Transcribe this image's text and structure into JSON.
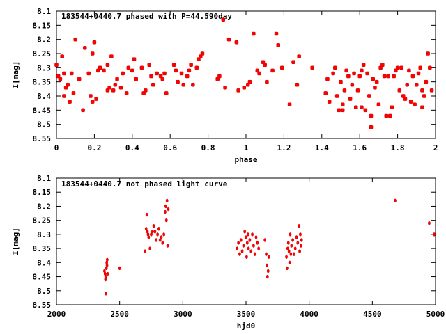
{
  "chart_data": [
    {
      "type": "scatter",
      "title": "183544+0440.7 phased with P=44.590day",
      "xlabel": "phase",
      "ylabel": "I[mag]",
      "xlim": [
        0,
        2
      ],
      "ylim": [
        8.1,
        8.55
      ],
      "y_inverted": true,
      "grid": false,
      "xticks": [
        0,
        0.2,
        0.4,
        0.6,
        0.8,
        1,
        1.2,
        1.4,
        1.6,
        1.8,
        2
      ],
      "xtick_labels": [
        "0",
        "0.2",
        "0.4",
        "0.6",
        "0.8",
        "1",
        "1.2",
        "1.4",
        "1.6",
        "1.8",
        "2"
      ],
      "yticks": [
        8.1,
        8.15,
        8.2,
        8.25,
        8.3,
        8.35,
        8.4,
        8.45,
        8.5,
        8.55
      ],
      "ytick_labels": [
        "8.1",
        "8.15",
        "8.2",
        "8.25",
        "8.3",
        "8.35",
        "8.4",
        "8.45",
        "8.5",
        "8.55"
      ],
      "color": "#ff0000",
      "points": [
        [
          0.0,
          8.29
        ],
        [
          0.01,
          8.33
        ],
        [
          0.02,
          8.34
        ],
        [
          0.03,
          8.26
        ],
        [
          0.04,
          8.32
        ],
        [
          0.04,
          8.4
        ],
        [
          0.05,
          8.37
        ],
        [
          0.06,
          8.36
        ],
        [
          0.07,
          8.42
        ],
        [
          0.08,
          8.32
        ],
        [
          0.09,
          8.39
        ],
        [
          0.1,
          8.2
        ],
        [
          0.12,
          8.34
        ],
        [
          0.14,
          8.45
        ],
        [
          0.15,
          8.23
        ],
        [
          0.17,
          8.32
        ],
        [
          0.18,
          8.4
        ],
        [
          0.19,
          8.42
        ],
        [
          0.19,
          8.25
        ],
        [
          0.2,
          8.21
        ],
        [
          0.21,
          8.41
        ],
        [
          0.22,
          8.31
        ],
        [
          0.23,
          8.3
        ],
        [
          0.25,
          8.31
        ],
        [
          0.27,
          8.29
        ],
        [
          0.27,
          8.38
        ],
        [
          0.28,
          8.37
        ],
        [
          0.29,
          8.26
        ],
        [
          0.3,
          8.38
        ],
        [
          0.31,
          8.36
        ],
        [
          0.32,
          8.34
        ],
        [
          0.34,
          8.37
        ],
        [
          0.35,
          8.32
        ],
        [
          0.37,
          8.39
        ],
        [
          0.38,
          8.3
        ],
        [
          0.4,
          8.31
        ],
        [
          0.41,
          8.27
        ],
        [
          0.42,
          8.34
        ],
        [
          0.45,
          8.3
        ],
        [
          0.46,
          8.39
        ],
        [
          0.47,
          8.38
        ],
        [
          0.49,
          8.29
        ],
        [
          0.5,
          8.33
        ],
        [
          0.51,
          8.36
        ],
        [
          0.53,
          8.32
        ],
        [
          0.55,
          8.33
        ],
        [
          0.56,
          8.34
        ],
        [
          0.57,
          8.32
        ],
        [
          0.58,
          8.39
        ],
        [
          0.62,
          8.29
        ],
        [
          0.63,
          8.31
        ],
        [
          0.64,
          8.35
        ],
        [
          0.66,
          8.32
        ],
        [
          0.67,
          8.36
        ],
        [
          0.69,
          8.33
        ],
        [
          0.7,
          8.31
        ],
        [
          0.71,
          8.29
        ],
        [
          0.72,
          8.36
        ],
        [
          0.74,
          8.3
        ],
        [
          0.75,
          8.27
        ],
        [
          0.76,
          8.26
        ],
        [
          0.77,
          8.25
        ],
        [
          0.85,
          8.34
        ],
        [
          0.86,
          8.33
        ],
        [
          0.88,
          8.13
        ],
        [
          0.89,
          8.37
        ],
        [
          0.91,
          8.2
        ],
        [
          0.95,
          8.21
        ],
        [
          0.96,
          8.38
        ],
        [
          0.99,
          8.37
        ],
        [
          1.01,
          8.36
        ],
        [
          1.02,
          8.35
        ],
        [
          1.04,
          8.18
        ],
        [
          1.06,
          8.31
        ],
        [
          1.07,
          8.32
        ],
        [
          1.09,
          8.28
        ],
        [
          1.1,
          8.29
        ],
        [
          1.11,
          8.35
        ],
        [
          1.14,
          8.31
        ],
        [
          1.16,
          8.18
        ],
        [
          1.17,
          8.22
        ],
        [
          1.19,
          8.3
        ],
        [
          1.23,
          8.43
        ],
        [
          1.25,
          8.28
        ],
        [
          1.27,
          8.36
        ],
        [
          1.28,
          8.26
        ],
        [
          1.35,
          8.3
        ],
        [
          1.42,
          8.39
        ],
        [
          1.43,
          8.34
        ],
        [
          1.44,
          8.42
        ],
        [
          1.46,
          8.32
        ],
        [
          1.47,
          8.3
        ],
        [
          1.48,
          8.4
        ],
        [
          1.49,
          8.45
        ],
        [
          1.5,
          8.35
        ],
        [
          1.51,
          8.45
        ],
        [
          1.51,
          8.43
        ],
        [
          1.52,
          8.38
        ],
        [
          1.53,
          8.31
        ],
        [
          1.54,
          8.33
        ],
        [
          1.55,
          8.41
        ],
        [
          1.56,
          8.36
        ],
        [
          1.57,
          8.32
        ],
        [
          1.58,
          8.44
        ],
        [
          1.59,
          8.38
        ],
        [
          1.6,
          8.33
        ],
        [
          1.61,
          8.44
        ],
        [
          1.61,
          8.31
        ],
        [
          1.62,
          8.29
        ],
        [
          1.63,
          8.45
        ],
        [
          1.64,
          8.32
        ],
        [
          1.65,
          8.4
        ],
        [
          1.66,
          8.47
        ],
        [
          1.66,
          8.51
        ],
        [
          1.67,
          8.34
        ],
        [
          1.68,
          8.37
        ],
        [
          1.69,
          8.35
        ],
        [
          1.7,
          8.43
        ],
        [
          1.71,
          8.3
        ],
        [
          1.72,
          8.29
        ],
        [
          1.73,
          8.33
        ],
        [
          1.74,
          8.47
        ],
        [
          1.75,
          8.33
        ],
        [
          1.76,
          8.47
        ],
        [
          1.77,
          8.44
        ],
        [
          1.78,
          8.33
        ],
        [
          1.79,
          8.31
        ],
        [
          1.8,
          8.3
        ],
        [
          1.81,
          8.38
        ],
        [
          1.82,
          8.3
        ],
        [
          1.83,
          8.4
        ],
        [
          1.84,
          8.41
        ],
        [
          1.85,
          8.36
        ],
        [
          1.86,
          8.31
        ],
        [
          1.87,
          8.42
        ],
        [
          1.88,
          8.33
        ],
        [
          1.89,
          8.43
        ],
        [
          1.9,
          8.36
        ],
        [
          1.91,
          8.32
        ],
        [
          1.92,
          8.3
        ],
        [
          1.93,
          8.38
        ],
        [
          1.93,
          8.44
        ],
        [
          1.94,
          8.4
        ],
        [
          1.95,
          8.35
        ],
        [
          1.96,
          8.25
        ],
        [
          1.97,
          8.3
        ],
        [
          1.98,
          8.38
        ]
      ]
    },
    {
      "type": "scatter",
      "title": "183544+0440.7 not phased light curve",
      "xlabel": "hjd0",
      "ylabel": "I[mag]",
      "xlim": [
        2000,
        5000
      ],
      "ylim": [
        8.1,
        8.55
      ],
      "y_inverted": true,
      "grid": false,
      "xticks": [
        2000,
        2500,
        3000,
        3500,
        4000,
        4500,
        5000
      ],
      "xtick_labels": [
        "2000",
        "2500",
        "3000",
        "3500",
        "4000",
        "4500",
        "5000"
      ],
      "yticks": [
        8.1,
        8.15,
        8.2,
        8.25,
        8.3,
        8.35,
        8.4,
        8.45,
        8.5,
        8.55
      ],
      "ytick_labels": [
        "8.1",
        "8.15",
        "8.2",
        "8.25",
        "8.3",
        "8.35",
        "8.4",
        "8.45",
        "8.5",
        "8.55"
      ],
      "color": "#ff0000",
      "points": [
        [
          2380,
          8.43
        ],
        [
          2385,
          8.44
        ],
        [
          2388,
          8.46
        ],
        [
          2390,
          8.45
        ],
        [
          2392,
          8.51
        ],
        [
          2395,
          8.42
        ],
        [
          2398,
          8.4
        ],
        [
          2400,
          8.41
        ],
        [
          2402,
          8.39
        ],
        [
          2405,
          8.44
        ],
        [
          2500,
          8.42
        ],
        [
          2700,
          8.36
        ],
        [
          2710,
          8.28
        ],
        [
          2715,
          8.23
        ],
        [
          2720,
          8.29
        ],
        [
          2725,
          8.3
        ],
        [
          2730,
          8.31
        ],
        [
          2740,
          8.35
        ],
        [
          2750,
          8.3
        ],
        [
          2760,
          8.29
        ],
        [
          2770,
          8.27
        ],
        [
          2780,
          8.29
        ],
        [
          2790,
          8.32
        ],
        [
          2800,
          8.3
        ],
        [
          2810,
          8.28
        ],
        [
          2820,
          8.32
        ],
        [
          2830,
          8.31
        ],
        [
          2840,
          8.33
        ],
        [
          2850,
          8.3
        ],
        [
          2860,
          8.22
        ],
        [
          2865,
          8.2
        ],
        [
          2870,
          8.25
        ],
        [
          2875,
          8.18
        ],
        [
          2880,
          8.34
        ],
        [
          2885,
          8.21
        ],
        [
          3430,
          8.35
        ],
        [
          3440,
          8.33
        ],
        [
          3450,
          8.37
        ],
        [
          3460,
          8.32
        ],
        [
          3470,
          8.36
        ],
        [
          3480,
          8.34
        ],
        [
          3490,
          8.29
        ],
        [
          3500,
          8.31
        ],
        [
          3505,
          8.38
        ],
        [
          3510,
          8.33
        ],
        [
          3515,
          8.3
        ],
        [
          3520,
          8.35
        ],
        [
          3530,
          8.32
        ],
        [
          3540,
          8.36
        ],
        [
          3550,
          8.3
        ],
        [
          3560,
          8.34
        ],
        [
          3570,
          8.37
        ],
        [
          3580,
          8.31
        ],
        [
          3590,
          8.33
        ],
        [
          3600,
          8.35
        ],
        [
          3650,
          8.32
        ],
        [
          3660,
          8.37
        ],
        [
          3665,
          8.41
        ],
        [
          3670,
          8.45
        ],
        [
          3675,
          8.43
        ],
        [
          3680,
          8.38
        ],
        [
          3820,
          8.38
        ],
        [
          3825,
          8.42
        ],
        [
          3830,
          8.35
        ],
        [
          3835,
          8.33
        ],
        [
          3840,
          8.36
        ],
        [
          3845,
          8.4
        ],
        [
          3850,
          8.3
        ],
        [
          3855,
          8.37
        ],
        [
          3860,
          8.34
        ],
        [
          3870,
          8.32
        ],
        [
          3880,
          8.37
        ],
        [
          3890,
          8.35
        ],
        [
          3900,
          8.31
        ],
        [
          3910,
          8.33
        ],
        [
          3920,
          8.27
        ],
        [
          3925,
          8.36
        ],
        [
          3930,
          8.3
        ],
        [
          3935,
          8.34
        ],
        [
          3940,
          8.32
        ],
        [
          4680,
          8.18
        ],
        [
          4950,
          8.26
        ],
        [
          4990,
          8.3
        ]
      ]
    }
  ]
}
